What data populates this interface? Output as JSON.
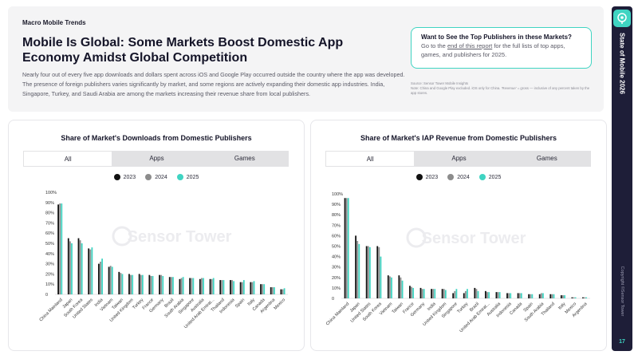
{
  "header": {
    "section_label": "Macro Mobile Trends",
    "title": "Mobile Is Global: Some Markets Boost Domestic App Economy Amidst Global Competition",
    "description": "Nearly four out of every five app downloads and dollars spent across iOS and Google Play occurred outside the country where the app was developed. The presence of foreign publishers varies significantly by market, and some regions are actively expanding their domestic app industries. India, Singapore, Turkey, and Saudi Arabia are among the markets increasing their revenue share from local publishers."
  },
  "callout": {
    "title": "Want to See the Top Publishers in these Markets?",
    "text_before": "Go to the ",
    "link": "end of this report",
    "text_after": " for the full lists of top apps, games, and publishers for 2025."
  },
  "source": {
    "line1": "Source: Sensor Tower Mobile Insights",
    "line2": "Note: China and Google Play excluded. iOS only for China. 'Revenue' = gross — inclusive of any percent taken by the app stores."
  },
  "sidebar": {
    "title": "State of Mobile 2026",
    "copyright": "Copyright ©Sensor Tower",
    "page_number": "17"
  },
  "watermark": "Sensor Tower",
  "colors": {
    "y2023": "#111111",
    "y2024": "#8c8c8c",
    "y2025": "#3fd4c2",
    "accent": "#3fd4c2"
  },
  "chart_data": [
    {
      "type": "bar",
      "title": "Share of Market's Downloads from Domestic Publishers",
      "tabs": [
        "All",
        "Apps",
        "Games"
      ],
      "active_tab": "All",
      "legend": [
        "2023",
        "2024",
        "2025"
      ],
      "ylim": [
        0,
        100
      ],
      "y_ticks": [
        "0",
        "10%",
        "20%",
        "30%",
        "40%",
        "50%",
        "60%",
        "70%",
        "80%",
        "90%",
        "100%"
      ],
      "categories": [
        "China Mainland",
        "Japan",
        "South Korea",
        "United States",
        "India",
        "Vietnam",
        "Taiwan",
        "United Kingdom",
        "Turkey",
        "France",
        "Germany",
        "Brazil",
        "South Arabia",
        "Singapore",
        "Australia",
        "United Arab Emirat...",
        "Thailand",
        "Indonesia",
        "Spain",
        "Italy",
        "Canada",
        "Argentina",
        "Mexico"
      ],
      "series": [
        {
          "name": "2023",
          "values": [
            88,
            55,
            55,
            45,
            30,
            27,
            22,
            20,
            20,
            19,
            19,
            17,
            15,
            16,
            15,
            15,
            14,
            14,
            12,
            12,
            10,
            7,
            5
          ]
        },
        {
          "name": "2024",
          "values": [
            89,
            52,
            53,
            44,
            32,
            28,
            21,
            19,
            19,
            18,
            19,
            17,
            16,
            16,
            16,
            15,
            14,
            14,
            12,
            12,
            10,
            7,
            5
          ]
        },
        {
          "name": "2025",
          "values": [
            89,
            50,
            50,
            46,
            35,
            27,
            20,
            19,
            19,
            18,
            18,
            17,
            17,
            16,
            16,
            16,
            14,
            13,
            14,
            13,
            10,
            7,
            6
          ]
        }
      ]
    },
    {
      "type": "bar",
      "title": "Share of Market's IAP Revenue from Domestic Publishers",
      "tabs": [
        "All",
        "Apps",
        "Games"
      ],
      "active_tab": "All",
      "legend": [
        "2023",
        "2024",
        "2025"
      ],
      "ylim": [
        0,
        100
      ],
      "y_ticks": [
        "0",
        "10%",
        "20%",
        "30%",
        "40%",
        "50%",
        "60%",
        "70%",
        "80%",
        "90%",
        "100%"
      ],
      "categories": [
        "China Mainland",
        "Japan",
        "United States",
        "South Korea",
        "Vietnam",
        "Taiwan",
        "France",
        "Germany",
        "India",
        "United Kingdom",
        "Singapore",
        "Turkey",
        "Brazil",
        "United Arab Emirat...",
        "Australia",
        "Indonesia",
        "Canada",
        "Spain",
        "South Arabia",
        "Thailand",
        "Italy",
        "Mexico",
        "Argentina"
      ],
      "series": [
        {
          "name": "2023",
          "values": [
            96,
            60,
            50,
            50,
            22,
            22,
            12,
            10,
            9,
            9,
            5,
            5,
            10,
            7,
            6,
            5,
            5,
            4,
            4,
            4,
            3,
            1,
            1
          ]
        },
        {
          "name": "2024",
          "values": [
            96,
            55,
            50,
            49,
            21,
            20,
            11,
            9,
            9,
            9,
            7,
            7,
            9,
            6,
            6,
            5,
            5,
            4,
            5,
            4,
            3,
            1,
            1
          ]
        },
        {
          "name": "2025",
          "values": [
            96,
            52,
            49,
            40,
            20,
            17,
            10,
            9,
            9,
            8,
            9,
            9,
            7,
            6,
            6,
            5,
            5,
            4,
            5,
            4,
            3,
            1,
            1
          ]
        }
      ]
    }
  ]
}
